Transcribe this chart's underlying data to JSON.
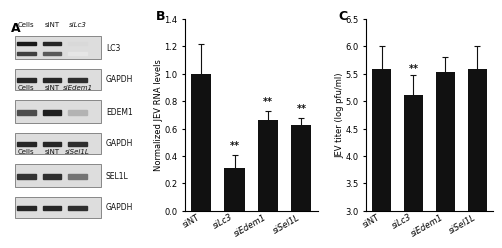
{
  "panel_B": {
    "categories": [
      "siNT",
      "siLc3",
      "siEdem1",
      "siSel1L"
    ],
    "values": [
      1.0,
      0.31,
      0.66,
      0.63
    ],
    "errors": [
      0.22,
      0.1,
      0.07,
      0.05
    ],
    "ylabel": "Normalized JEV RNA levels",
    "ylim": [
      0,
      1.4
    ],
    "yticks": [
      0,
      0.2,
      0.4,
      0.6,
      0.8,
      1.0,
      1.2,
      1.4
    ],
    "significance": [
      "",
      "**",
      "**",
      "**"
    ],
    "bar_color": "#111111",
    "bar_width": 0.6
  },
  "panel_C": {
    "categories": [
      "siNT",
      "siLc3",
      "siEdem1",
      "siSel1L"
    ],
    "values": [
      5.58,
      5.12,
      5.53,
      5.58
    ],
    "errors": [
      0.42,
      0.35,
      0.28,
      0.42
    ],
    "ylabel": "JEV titer (log pfu/ml)",
    "ylim": [
      3,
      6.5
    ],
    "yticks": [
      3,
      3.5,
      4,
      4.5,
      5,
      5.5,
      6,
      6.5
    ],
    "significance": [
      "",
      "**",
      "",
      ""
    ],
    "bar_color": "#111111",
    "bar_width": 0.6
  },
  "panel_labels": [
    "A",
    "B",
    "C"
  ],
  "figure_bg": "#ffffff",
  "text_color": "#000000",
  "font_size_tick": 6,
  "font_size_ylabel": 6,
  "font_size_panel": 9,
  "font_size_sig": 7,
  "font_size_header": 5,
  "font_size_blot_label": 5.5,
  "blot_groups": [
    {
      "header": [
        "Cells",
        "siNT",
        "siLc3"
      ],
      "italic_header": [
        false,
        false,
        true
      ],
      "protein": "LC3",
      "two_bands": true,
      "protein_band_alphas_upper": [
        0.9,
        0.85,
        0.15
      ],
      "protein_band_alphas_lower": [
        0.75,
        0.65,
        0.1
      ],
      "gapdh_band_alphas": [
        0.85,
        0.85,
        0.82
      ]
    },
    {
      "header": [
        "Cells",
        "siNT",
        "siEdem1"
      ],
      "italic_header": [
        false,
        false,
        true
      ],
      "protein": "EDEM1",
      "two_bands": false,
      "protein_band_alphas": [
        0.7,
        0.88,
        0.3
      ],
      "gapdh_band_alphas": [
        0.85,
        0.85,
        0.82
      ]
    },
    {
      "header": [
        "Cells",
        "siNT",
        "siSel1L"
      ],
      "italic_header": [
        false,
        false,
        true
      ],
      "protein": "SEL1L",
      "two_bands": false,
      "protein_band_alphas": [
        0.8,
        0.82,
        0.55
      ],
      "gapdh_band_alphas": [
        0.85,
        0.85,
        0.82
      ]
    }
  ]
}
